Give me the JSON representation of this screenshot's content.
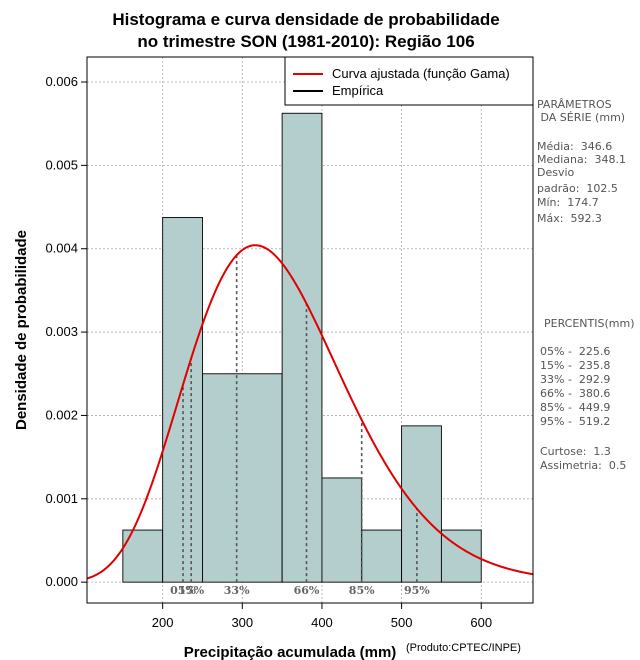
{
  "chart_data": {
    "type": "histogram",
    "title": [
      "Histograma e curva densidade de probabilidade",
      "no trimestre SON (1981-2010): Região 106"
    ],
    "xlabel": "Precipitação acumulada (mm)",
    "ylabel": "Densidade de probabilidade",
    "credit": "(Produto:CPTEC/INPE)",
    "xlim": [
      105,
      665
    ],
    "ylim": [
      -0.00025,
      0.0063
    ],
    "xticks": [
      200,
      300,
      400,
      500,
      600
    ],
    "yticks": [
      0.0,
      0.001,
      0.002,
      0.003,
      0.004,
      0.005,
      0.006
    ],
    "ytick_labels": [
      "0.000",
      "0.001",
      "0.002",
      "0.003",
      "0.004",
      "0.005",
      "0.006"
    ],
    "grid": true,
    "bins": [
      {
        "from": 150,
        "to": 200,
        "density": 0.000625
      },
      {
        "from": 200,
        "to": 250,
        "density": 0.004375
      },
      {
        "from": 250,
        "to": 350,
        "density": 0.0025
      },
      {
        "from": 350,
        "to": 400,
        "density": 0.005625
      },
      {
        "from": 400,
        "to": 450,
        "density": 0.00125
      },
      {
        "from": 450,
        "to": 500,
        "density": 0.000625
      },
      {
        "from": 500,
        "to": 550,
        "density": 0.001875
      },
      {
        "from": 550,
        "to": 600,
        "density": 0.000625
      }
    ],
    "fitted_curve": {
      "distribution": "gamma",
      "mean": 346.6,
      "sd": 102.5,
      "color": "#e00000"
    },
    "percentile_markers": [
      {
        "label": "05%",
        "value": 225.6
      },
      {
        "label": "15%",
        "value": 235.8
      },
      {
        "label": "33%",
        "value": 292.9
      },
      {
        "label": "66%",
        "value": 380.6
      },
      {
        "label": "85%",
        "value": 449.9
      },
      {
        "label": "95%",
        "value": 519.2
      }
    ],
    "legend": [
      {
        "label": "Curva ajustada (função Gama)",
        "color": "#e00000"
      },
      {
        "label": "Empírica",
        "color": "#000000"
      }
    ],
    "colors": {
      "bar_fill": "#b4cece",
      "curve": "#e00000"
    }
  },
  "stats": {
    "header": [
      "PARÂMETROS",
      " DA SÉRIE (mm)"
    ],
    "lines": [
      "Média:  346.6",
      "Mediana:  348.1",
      "Desvio",
      "padrão:  102.5",
      "Mín:  174.7",
      "Máx:  592.3"
    ]
  },
  "percentiles": {
    "header": "PERCENTIS(mm)",
    "lines": [
      "05% -  225.6",
      "15% -  235.8",
      "33% -  292.9",
      "66% -  380.6",
      "85% -  449.9",
      "95% -  519.2"
    ]
  },
  "shape": {
    "lines": [
      "Curtose:  1.3",
      "Assimetria:  0.5"
    ]
  }
}
